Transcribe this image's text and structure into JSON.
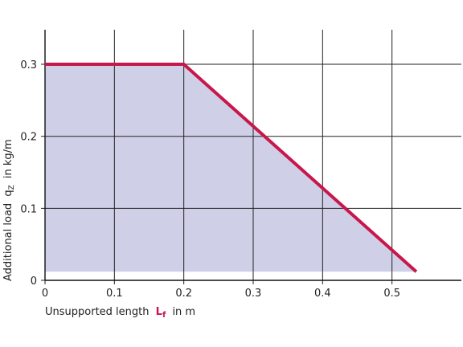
{
  "chart_data": {
    "type": "area-line",
    "x": [
      0,
      0.2,
      0.535
    ],
    "values": [
      0.3,
      0.3,
      0.012
    ],
    "color": "#c8174a",
    "fill_color": "#cfd0e8",
    "xlim": [
      0,
      0.6
    ],
    "ylim": [
      0,
      0.348
    ],
    "xticks": [
      0,
      0.1,
      0.2,
      0.3,
      0.4,
      0.5
    ],
    "yticks": [
      0,
      0.1,
      0.2,
      0.3
    ],
    "grid": true,
    "xlabel": {
      "before": "Unsupported length",
      "symbol": "L",
      "subscript": "f",
      "after": "in m"
    },
    "ylabel": {
      "before": "Additional load",
      "symbol": "q",
      "subscript": "Z",
      "after": "in kg/m"
    }
  }
}
